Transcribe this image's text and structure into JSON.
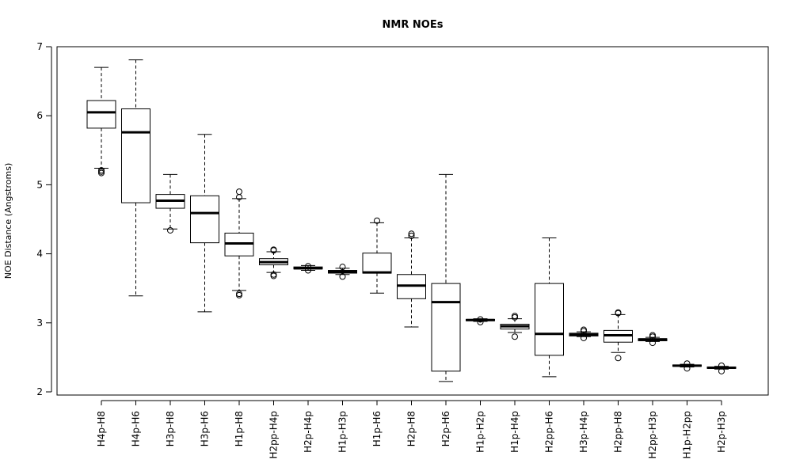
{
  "chart_data": {
    "type": "boxplot",
    "title": "NMR NOEs",
    "xlabel": "",
    "ylabel": "NOE Distance (Angstroms)",
    "ylim": [
      2,
      7
    ],
    "yticks": [
      2,
      3,
      4,
      5,
      6,
      7
    ],
    "grid": false,
    "legend": "none",
    "categories": [
      "H4p-H8",
      "H4p-H6",
      "H3p-H8",
      "H3p-H6",
      "H1p-H8",
      "H2pp-H4p",
      "H2p-H4p",
      "H1p-H3p",
      "H1p-H6",
      "H2p-H8",
      "H2p-H6",
      "H1p-H2p",
      "H1p-H4p",
      "H2pp-H6",
      "H3p-H4p",
      "H2pp-H8",
      "H2pp-H3p",
      "H1p-H2pp",
      "H2p-H3p"
    ],
    "boxes": [
      {
        "whisker_low": 5.24,
        "q1": 5.82,
        "median": 6.05,
        "q3": 6.22,
        "whisker_high": 6.7,
        "outliers": [
          5.17,
          5.19,
          5.21
        ]
      },
      {
        "whisker_low": 3.39,
        "q1": 4.74,
        "median": 5.76,
        "q3": 6.1,
        "whisker_high": 6.81,
        "outliers": []
      },
      {
        "whisker_low": 4.36,
        "q1": 4.66,
        "median": 4.77,
        "q3": 4.86,
        "whisker_high": 5.15,
        "outliers": [
          4.34
        ]
      },
      {
        "whisker_low": 3.16,
        "q1": 4.16,
        "median": 4.59,
        "q3": 4.84,
        "whisker_high": 5.73,
        "outliers": []
      },
      {
        "whisker_low": 3.47,
        "q1": 3.97,
        "median": 4.15,
        "q3": 4.3,
        "whisker_high": 4.8,
        "outliers": [
          3.4,
          3.42,
          4.82,
          4.9
        ]
      },
      {
        "whisker_low": 3.73,
        "q1": 3.84,
        "median": 3.88,
        "q3": 3.93,
        "whisker_high": 4.03,
        "outliers": [
          3.68,
          3.7,
          4.05,
          4.06
        ]
      },
      {
        "whisker_low": 3.76,
        "q1": 3.78,
        "median": 3.79,
        "q3": 3.81,
        "whisker_high": 3.83,
        "outliers": [
          3.76,
          3.82
        ]
      },
      {
        "whisker_low": 3.7,
        "q1": 3.72,
        "median": 3.74,
        "q3": 3.76,
        "whisker_high": 3.79,
        "outliers": [
          3.67,
          3.81
        ]
      },
      {
        "whisker_low": 3.43,
        "q1": 3.72,
        "median": 3.73,
        "q3": 4.01,
        "whisker_high": 4.45,
        "outliers": [
          4.48
        ]
      },
      {
        "whisker_low": 2.94,
        "q1": 3.35,
        "median": 3.54,
        "q3": 3.7,
        "whisker_high": 4.23,
        "outliers": [
          4.26,
          4.29
        ]
      },
      {
        "whisker_low": 2.15,
        "q1": 2.3,
        "median": 3.3,
        "q3": 3.57,
        "whisker_high": 5.15,
        "outliers": []
      },
      {
        "whisker_low": 3.02,
        "q1": 3.03,
        "median": 3.04,
        "q3": 3.05,
        "whisker_high": 3.06,
        "outliers": [
          3.01,
          3.05
        ]
      },
      {
        "whisker_low": 2.86,
        "q1": 2.91,
        "median": 2.95,
        "q3": 2.98,
        "whisker_high": 3.06,
        "outliers": [
          2.8,
          3.08,
          3.1
        ]
      },
      {
        "whisker_low": 2.22,
        "q1": 2.53,
        "median": 2.84,
        "q3": 3.57,
        "whisker_high": 4.23,
        "outliers": []
      },
      {
        "whisker_low": 2.8,
        "q1": 2.81,
        "median": 2.83,
        "q3": 2.85,
        "whisker_high": 2.87,
        "outliers": [
          2.78,
          2.88,
          2.9
        ]
      },
      {
        "whisker_low": 2.57,
        "q1": 2.72,
        "median": 2.82,
        "q3": 2.89,
        "whisker_high": 3.12,
        "outliers": [
          2.49,
          3.14,
          3.15
        ]
      },
      {
        "whisker_low": 2.73,
        "q1": 2.74,
        "median": 2.76,
        "q3": 2.77,
        "whisker_high": 2.79,
        "outliers": [
          2.71,
          2.8,
          2.82
        ]
      },
      {
        "whisker_low": 2.36,
        "q1": 2.37,
        "median": 2.38,
        "q3": 2.39,
        "whisker_high": 2.4,
        "outliers": [
          2.34,
          2.41
        ]
      },
      {
        "whisker_low": 2.33,
        "q1": 2.34,
        "median": 2.35,
        "q3": 2.36,
        "whisker_high": 2.37,
        "outliers": [
          2.3,
          2.38
        ]
      }
    ]
  }
}
